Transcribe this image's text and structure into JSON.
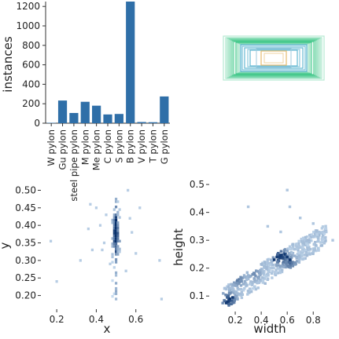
{
  "chart_data": [
    {
      "type": "bar",
      "title": "",
      "xlabel": "",
      "ylabel": "instances",
      "categories": [
        "W pylon",
        "Gu pylon",
        "steel pipe pylon",
        "M pylon",
        "Me pylon",
        "C pylon",
        "S pylon",
        "B pylon",
        "V pylon",
        "T pylon",
        "G pylon"
      ],
      "values": [
        4,
        233,
        105,
        220,
        180,
        90,
        95,
        1250,
        12,
        10,
        275
      ],
      "ylim": [
        0,
        1250
      ],
      "yticks": [
        0,
        200,
        400,
        600,
        800,
        1000,
        1200
      ],
      "color": "#2f6fa8"
    },
    {
      "type": "rectangle-overlay",
      "title": "",
      "legend": "none",
      "box_colors": [
        "#2ec27e",
        "#3fa7c8",
        "#e8c07a"
      ]
    },
    {
      "type": "heatmap",
      "title": "",
      "xlabel": "x",
      "ylabel": "y",
      "xlim": [
        0.12,
        0.78
      ],
      "ylim": [
        0.17,
        0.51
      ],
      "xticks": [
        0.2,
        0.4,
        0.6
      ],
      "yticks": [
        0.2,
        0.25,
        0.3,
        0.35,
        0.4,
        0.45,
        0.5
      ],
      "color": "#2f6fa8"
    },
    {
      "type": "heatmap",
      "title": "",
      "xlabel": "width",
      "ylabel": "height",
      "xlim": [
        0.0,
        0.98
      ],
      "ylim": [
        0.05,
        0.52
      ],
      "xticks": [
        0.2,
        0.4,
        0.6,
        0.8
      ],
      "yticks": [
        0.1,
        0.2,
        0.3,
        0.4,
        0.5
      ],
      "color": "#2f6fa8"
    }
  ]
}
